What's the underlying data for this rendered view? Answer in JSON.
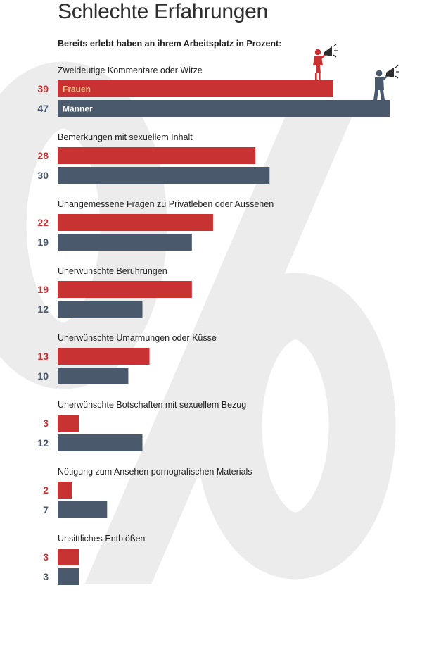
{
  "title": "Schlechte Erfahrungen",
  "subtitle": "Bereits erlebt haben an ihrem Arbeitsplatz in Prozent:",
  "background_symbol": "%",
  "icons": {
    "women": "megaphone-woman-icon",
    "men": "megaphone-man-icon"
  },
  "colors": {
    "frauen": "#c83232",
    "maenner": "#4a5a6c",
    "background_symbol": "#ececec",
    "frauen_label": "#f6c08a"
  },
  "chart_data": {
    "type": "bar",
    "orientation": "horizontal",
    "title": "Schlechte Erfahrungen",
    "subtitle": "Bereits erlebt haben an ihrem Arbeitsplatz in Prozent:",
    "categories": [
      "Zweideutige Kommentare oder Witze",
      "Bemerkungen mit sexuellem Inhalt",
      "Unangemessene Fragen zu Privatleben oder Aussehen",
      "Unerwünschte Berührungen",
      "Unerwünschte Umarmungen oder Küsse",
      "Unerwünschte Botschaften mit sexuellem Bezug",
      "Nötigung zum Ansehen pornografischen Materials",
      "Unsittliches Entblößen"
    ],
    "series": [
      {
        "name": "Frauen",
        "values": [
          39,
          28,
          22,
          19,
          13,
          3,
          2,
          3
        ]
      },
      {
        "name": "Männer",
        "values": [
          47,
          30,
          19,
          12,
          10,
          12,
          7,
          3
        ]
      }
    ],
    "xlim": [
      0,
      47
    ],
    "grid": false,
    "legend": "inside-first-bars"
  }
}
